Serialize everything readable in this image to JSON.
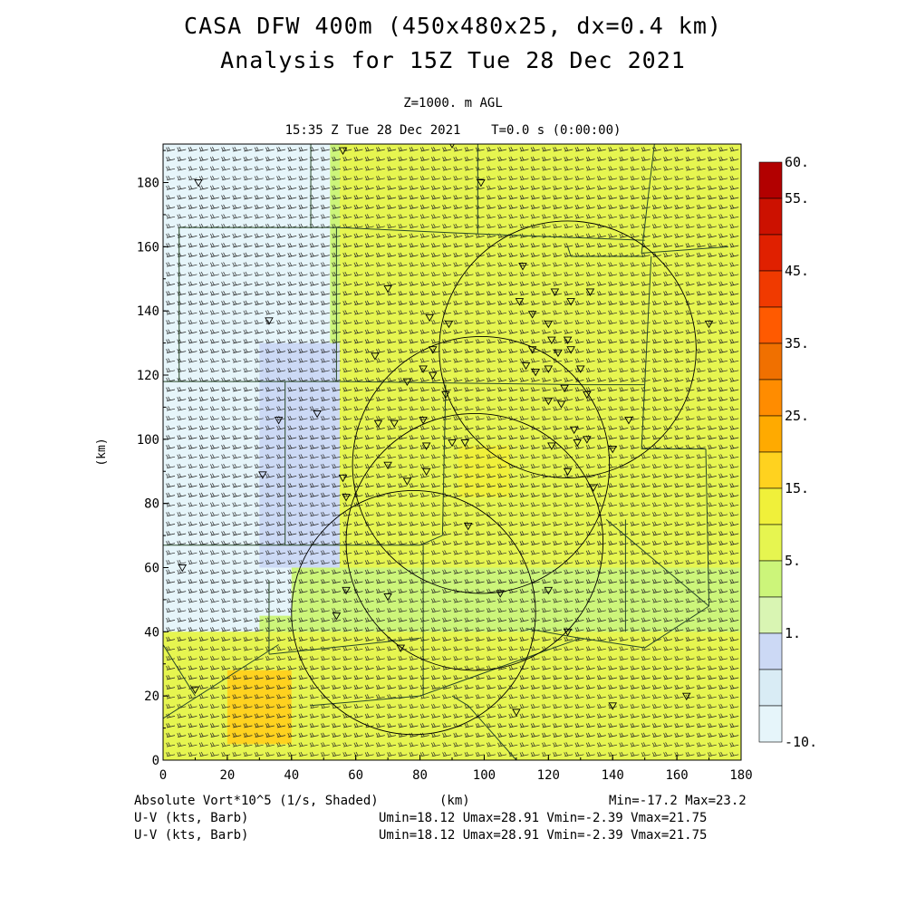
{
  "header": {
    "title_line1": "CASA DFW 400m (450x480x25, dx=0.4 km)",
    "title_line2": "Analysis for 15Z Tue 28 Dec 2021",
    "level": "Z=1000. m AGL",
    "time_line": "15:35 Z Tue 28 Dec 2021    T=0.0 s (0:00:00)"
  },
  "footer": {
    "shaded_var": "Absolute Vort*10^5 (1/s, Shaded)",
    "x_unit": "(km)",
    "minmax": "Min=-17.2 Max=23.2",
    "barb_var_1": "U-V (kts, Barb)",
    "barb_stats_1": "Umin=18.12 Umax=28.91 Vmin=-2.39 Vmax=21.75",
    "barb_var_2": "U-V (kts, Barb)",
    "barb_stats_2": "Umin=18.12 Umax=28.91 Vmin=-2.39 Vmax=21.75"
  },
  "chart_data": {
    "type": "heatmap",
    "xlabel": "",
    "ylabel": "(km)",
    "xlim": [
      0,
      180
    ],
    "ylim": [
      0,
      192
    ],
    "x_ticks": [
      0,
      20,
      40,
      60,
      80,
      100,
      120,
      140,
      160,
      180
    ],
    "y_ticks": [
      0,
      20,
      40,
      60,
      80,
      100,
      120,
      140,
      160,
      180
    ],
    "colorbar": {
      "labels": [
        {
          "text": "60.",
          "index": 0
        },
        {
          "text": "55.",
          "index": 1
        },
        {
          "text": "45.",
          "index": 3
        },
        {
          "text": "35.",
          "index": 5
        },
        {
          "text": "25.",
          "index": 7
        },
        {
          "text": "15.",
          "index": 9
        },
        {
          "text": "5.",
          "index": 11
        },
        {
          "text": "1.",
          "index": 13
        },
        {
          "text": "-10.",
          "index": 15
        }
      ],
      "colors": [
        "#b20000",
        "#cc1100",
        "#e02000",
        "#f03a00",
        "#ff5a00",
        "#f07000",
        "#ff8c00",
        "#ffaa00",
        "#ffd21f",
        "#f0f03a",
        "#e6f550",
        "#ccf57a",
        "#d9f5b3",
        "#ccd9f5",
        "#d9ecf5",
        "#e6f5fa"
      ]
    },
    "field_regions": [
      {
        "x": [
          0,
          180
        ],
        "y": [
          0,
          192
        ],
        "level": "5-10",
        "color": "#ccf57a"
      },
      {
        "x": [
          0,
          30
        ],
        "y": [
          40,
          192
        ],
        "level": "-10-1",
        "color": "#e6f5fa"
      },
      {
        "x": [
          0,
          52
        ],
        "y": [
          125,
          192
        ],
        "level": "-10-1",
        "color": "#e6f5fa"
      },
      {
        "x": [
          0,
          40
        ],
        "y": [
          45,
          120
        ],
        "level": "-10-1",
        "color": "#e6f5fa"
      },
      {
        "x": [
          30,
          55
        ],
        "y": [
          60,
          130
        ],
        "level": "1-5",
        "color": "#ccd9f5"
      },
      {
        "x": [
          55,
          180
        ],
        "y": [
          60,
          192
        ],
        "level": "10-15",
        "color": "#e6f550"
      },
      {
        "x": [
          0,
          180
        ],
        "y": [
          0,
          40
        ],
        "level": "10-15",
        "color": "#e6f550"
      },
      {
        "x": [
          20,
          40
        ],
        "y": [
          5,
          28
        ],
        "level": "20-25",
        "color": "#ffd21f"
      },
      {
        "x": [
          92,
          108
        ],
        "y": [
          82,
          98
        ],
        "level": "15-20",
        "color": "#f0f03a"
      }
    ],
    "radar_circles_km": [
      {
        "cx": 78,
        "cy": 46,
        "r": 38
      },
      {
        "cx": 97,
        "cy": 68,
        "r": 40
      },
      {
        "cx": 99,
        "cy": 92,
        "r": 40
      },
      {
        "cx": 126,
        "cy": 128,
        "r": 40
      }
    ],
    "stations_km": [
      [
        11,
        180
      ],
      [
        56,
        190
      ],
      [
        90,
        192
      ],
      [
        99,
        180
      ],
      [
        70,
        147
      ],
      [
        83,
        138
      ],
      [
        89,
        136
      ],
      [
        33,
        137
      ],
      [
        66,
        126
      ],
      [
        84,
        128
      ],
      [
        81,
        122
      ],
      [
        84,
        120
      ],
      [
        76,
        118
      ],
      [
        88,
        114
      ],
      [
        36,
        106
      ],
      [
        48,
        108
      ],
      [
        67,
        105
      ],
      [
        72,
        105
      ],
      [
        81,
        106
      ],
      [
        82,
        98
      ],
      [
        90,
        99
      ],
      [
        94,
        99
      ],
      [
        31,
        89
      ],
      [
        56,
        88
      ],
      [
        70,
        92
      ],
      [
        76,
        87
      ],
      [
        82,
        90
      ],
      [
        57,
        82
      ],
      [
        95,
        73
      ],
      [
        105,
        52
      ],
      [
        57,
        53
      ],
      [
        70,
        51
      ],
      [
        54,
        45
      ],
      [
        74,
        35
      ],
      [
        6,
        60
      ],
      [
        10,
        22
      ],
      [
        110,
        15
      ],
      [
        140,
        17
      ],
      [
        163,
        20
      ],
      [
        126,
        40
      ],
      [
        120,
        53
      ],
      [
        112,
        154
      ],
      [
        122,
        146
      ],
      [
        127,
        143
      ],
      [
        133,
        146
      ],
      [
        111,
        143
      ],
      [
        115,
        139
      ],
      [
        120,
        136
      ],
      [
        121,
        131
      ],
      [
        126,
        131
      ],
      [
        127,
        128
      ],
      [
        115,
        128
      ],
      [
        123,
        127
      ],
      [
        113,
        123
      ],
      [
        116,
        121
      ],
      [
        120,
        122
      ],
      [
        130,
        122
      ],
      [
        125,
        116
      ],
      [
        132,
        114
      ],
      [
        120,
        112
      ],
      [
        124,
        111
      ],
      [
        128,
        103
      ],
      [
        132,
        100
      ],
      [
        129,
        99
      ],
      [
        121,
        98
      ],
      [
        140,
        97
      ],
      [
        145,
        106
      ],
      [
        134,
        85
      ],
      [
        170,
        136
      ],
      [
        126,
        90
      ]
    ]
  },
  "colors": {
    "county_lines": "#2a4a2a",
    "barbs": "#222222",
    "axis": "#000000"
  }
}
